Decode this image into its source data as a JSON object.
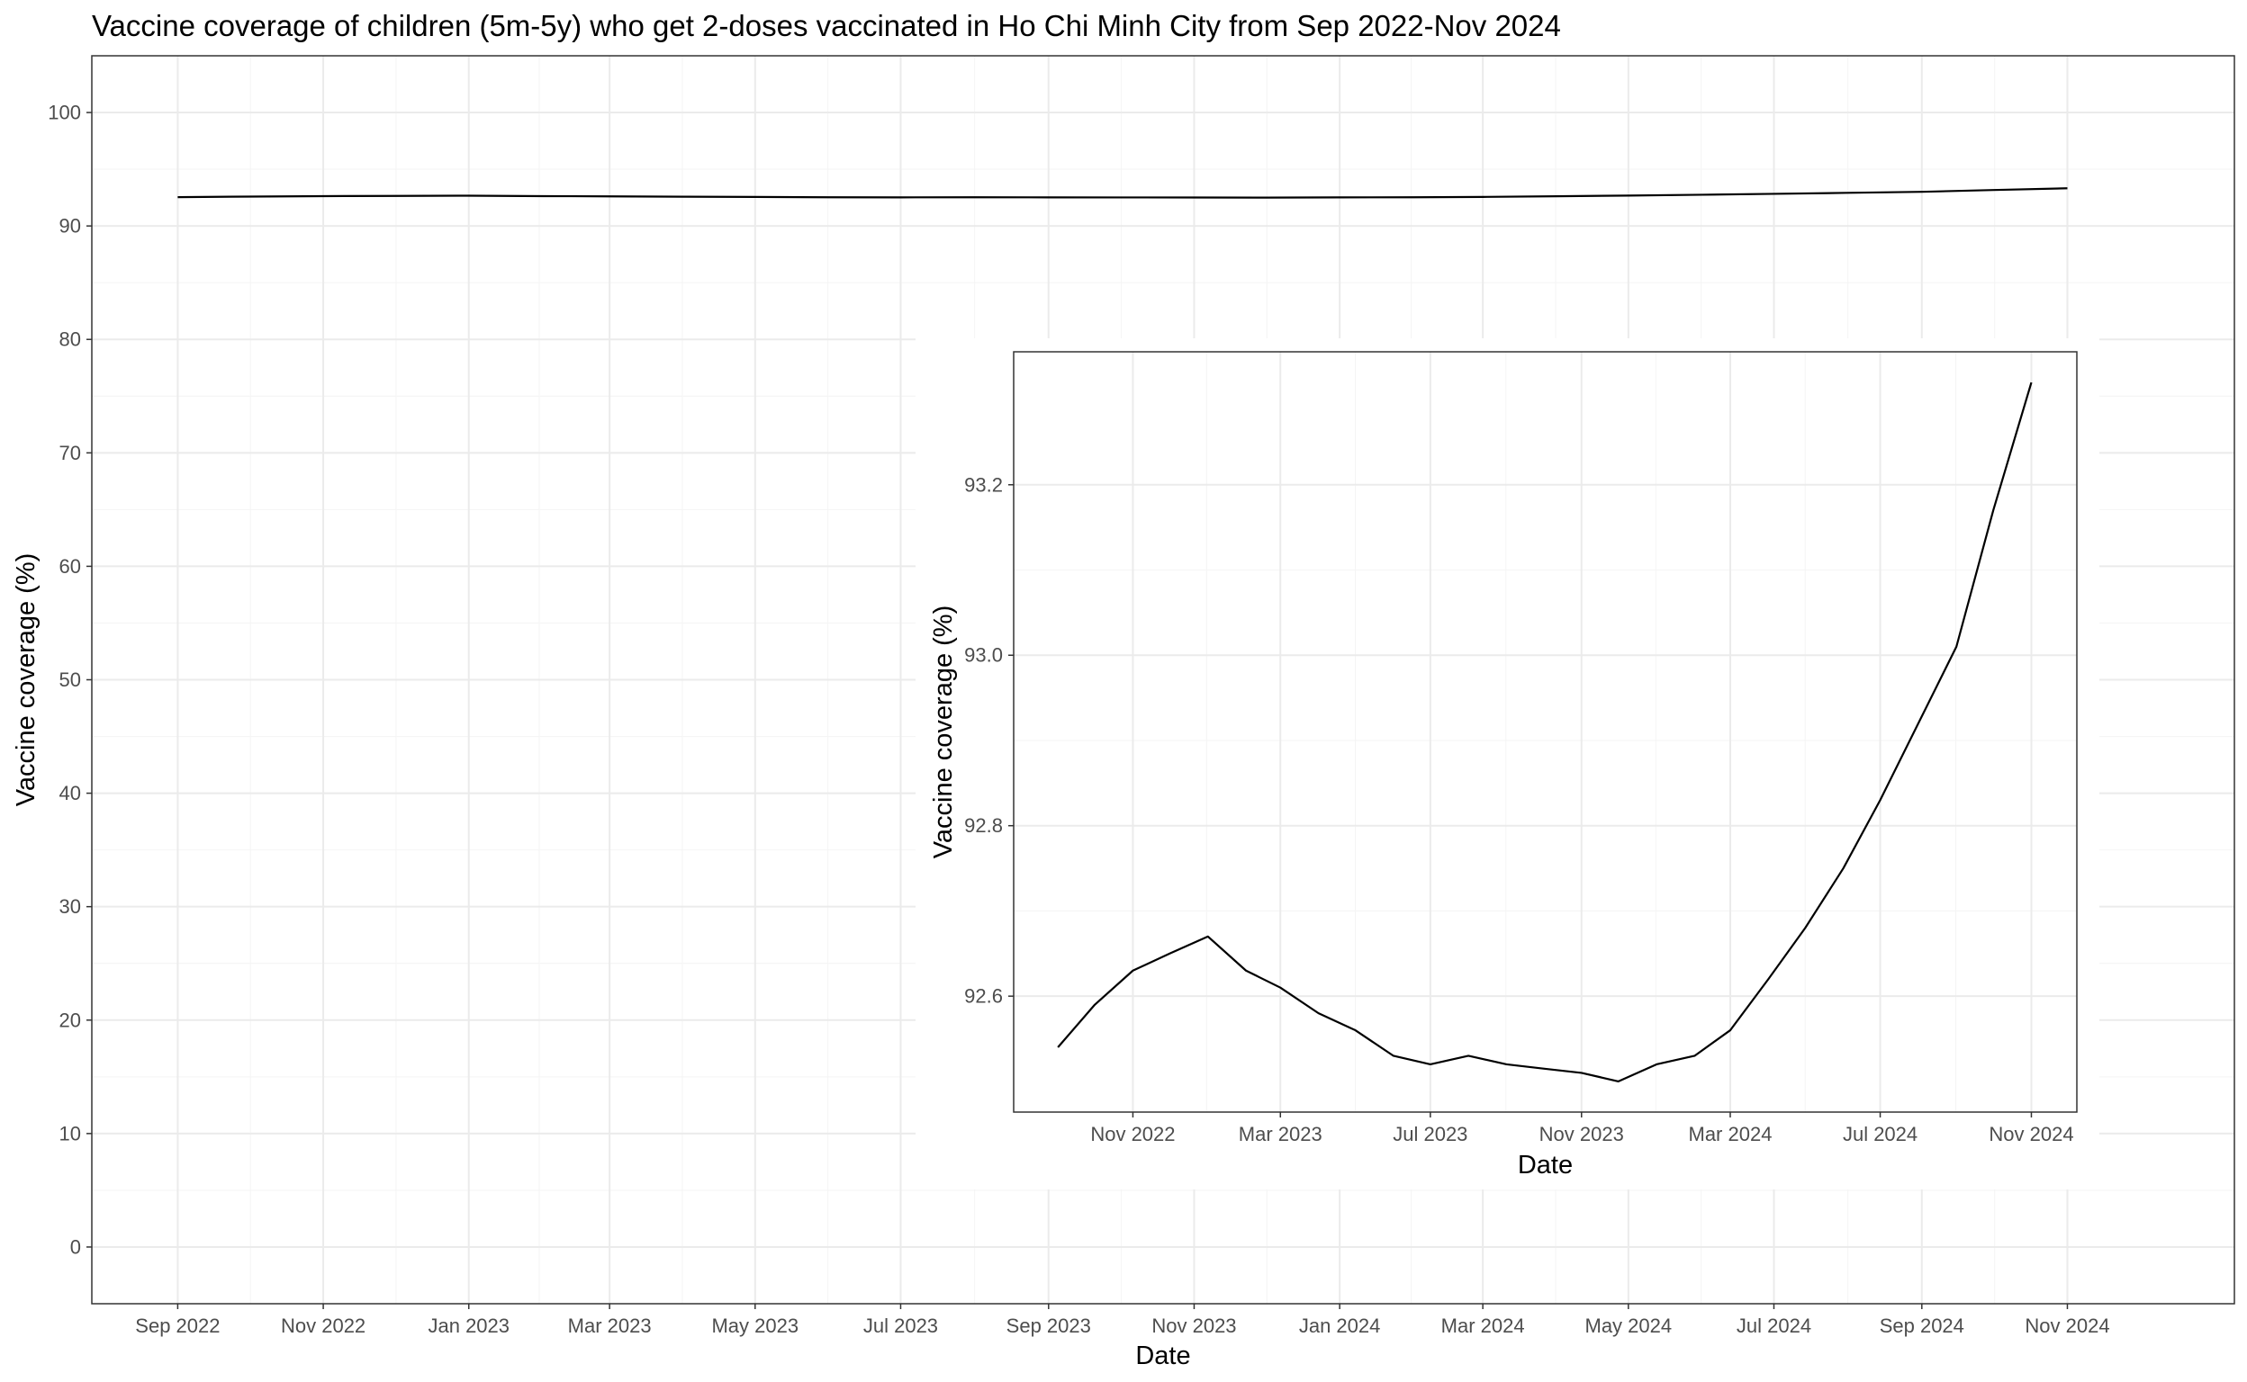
{
  "chart_data": [
    {
      "type": "line",
      "title": "Vaccine coverage of children (5m-5y) who get 2-doses vaccinated in Ho Chi Minh City from Sep 2022-Nov 2024",
      "xlabel": "Date",
      "ylabel": "Vaccine coverage (%)",
      "ylim": [
        -5,
        105
      ],
      "xlim": [
        "2022-07-27",
        "2025-01-10"
      ],
      "y_ticks": [
        0,
        10,
        20,
        30,
        40,
        50,
        60,
        70,
        80,
        90,
        100
      ],
      "x_ticks": [
        "2022-09-01",
        "2022-11-01",
        "2023-01-01",
        "2023-03-01",
        "2023-05-01",
        "2023-07-01",
        "2023-09-01",
        "2023-11-01",
        "2024-01-01",
        "2024-03-01",
        "2024-05-01",
        "2024-07-01",
        "2024-09-01",
        "2024-11-01"
      ],
      "x_tick_labels": [
        "Sep 2022",
        "Nov 2022",
        "Jan 2023",
        "Mar 2023",
        "May 2023",
        "Jul 2023",
        "Sep 2023",
        "Nov 2023",
        "Jan 2024",
        "Mar 2024",
        "May 2024",
        "Jul 2024",
        "Sep 2024",
        "Nov 2024"
      ],
      "grid": true,
      "series": [
        {
          "x": [
            "2022-09-01",
            "2022-10-01",
            "2022-11-01",
            "2022-12-01",
            "2023-01-01",
            "2023-02-01",
            "2023-03-01",
            "2023-04-01",
            "2023-05-01",
            "2023-06-01",
            "2023-07-01",
            "2023-08-01",
            "2023-09-01",
            "2023-10-01",
            "2023-11-01",
            "2023-12-01",
            "2024-01-01",
            "2024-02-01",
            "2024-03-01",
            "2024-04-01",
            "2024-05-01",
            "2024-06-01",
            "2024-07-01",
            "2024-08-01",
            "2024-09-01",
            "2024-10-01",
            "2024-11-01"
          ],
          "y": [
            92.54,
            92.59,
            92.63,
            92.65,
            92.67,
            92.63,
            92.61,
            92.58,
            92.56,
            92.53,
            92.52,
            92.53,
            92.52,
            92.515,
            92.51,
            92.5,
            92.52,
            92.53,
            92.56,
            92.62,
            92.68,
            92.75,
            92.83,
            92.92,
            93.01,
            93.17,
            93.32
          ]
        }
      ]
    },
    {
      "type": "line",
      "title": "",
      "xlabel": "Date",
      "ylabel": "Vaccine coverage (%)",
      "ylim": [
        92.464,
        93.356
      ],
      "xlim": [
        "2022-07-27",
        "2024-12-08"
      ],
      "y_ticks": [
        92.6,
        92.8,
        93.0,
        93.2
      ],
      "y_tick_labels": [
        "92.6",
        "92.8",
        "93.0",
        "93.2"
      ],
      "x_ticks": [
        "2022-11-01",
        "2023-03-01",
        "2023-07-01",
        "2023-11-01",
        "2024-03-01",
        "2024-07-01",
        "2024-11-01"
      ],
      "x_tick_labels": [
        "Nov 2022",
        "Mar 2023",
        "Jul 2023",
        "Nov 2023",
        "Mar 2024",
        "Jul 2024",
        "Nov 2024"
      ],
      "grid": true,
      "series": [
        {
          "x": [
            "2022-09-01",
            "2022-10-01",
            "2022-11-01",
            "2022-12-01",
            "2023-01-01",
            "2023-02-01",
            "2023-03-01",
            "2023-04-01",
            "2023-05-01",
            "2023-06-01",
            "2023-07-01",
            "2023-08-01",
            "2023-09-01",
            "2023-10-01",
            "2023-11-01",
            "2023-12-01",
            "2024-01-01",
            "2024-02-01",
            "2024-03-01",
            "2024-04-01",
            "2024-05-01",
            "2024-06-01",
            "2024-07-01",
            "2024-08-01",
            "2024-09-01",
            "2024-10-01",
            "2024-11-01"
          ],
          "y": [
            92.54,
            92.59,
            92.63,
            92.65,
            92.67,
            92.63,
            92.61,
            92.58,
            92.56,
            92.53,
            92.52,
            92.53,
            92.52,
            92.515,
            92.51,
            92.5,
            92.52,
            92.53,
            92.56,
            92.62,
            92.68,
            92.75,
            92.83,
            92.92,
            93.01,
            93.17,
            93.32
          ]
        }
      ]
    }
  ],
  "colors": {
    "line": "#000000",
    "grid_major": "#ebebeb",
    "grid_minor": "#f5f5f5",
    "panel_border": "#333333",
    "tick_text": "#4d4d4d"
  }
}
